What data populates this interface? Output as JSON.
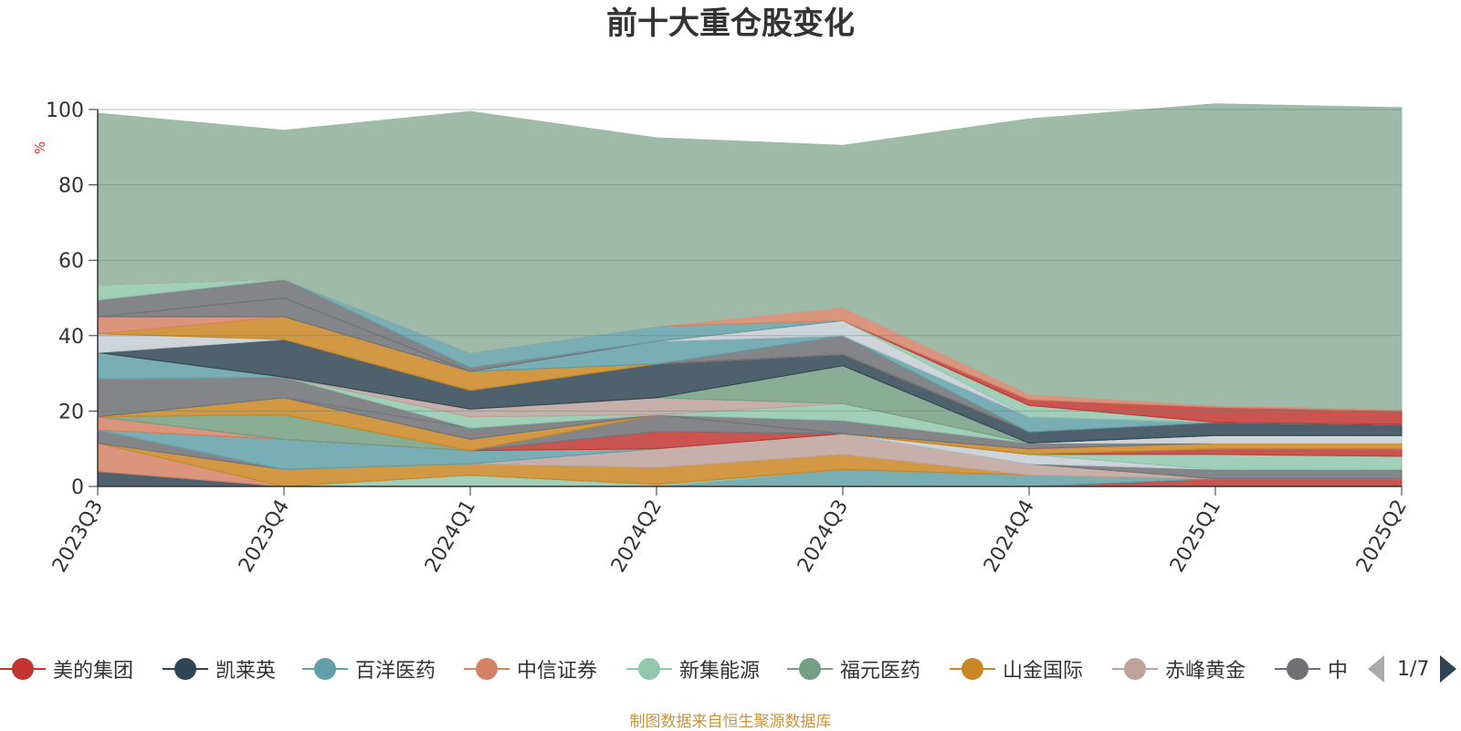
{
  "title": "前十大重仓股变化",
  "source_note": "制图数据来自恒生聚源数据库",
  "legend": {
    "items": [
      {
        "label": "美的集团",
        "color": "#c23531"
      },
      {
        "label": "凯莱英",
        "color": "#2f4554"
      },
      {
        "label": "百洋医药",
        "color": "#61a0a8"
      },
      {
        "label": "中信证券",
        "color": "#d48265"
      },
      {
        "label": "新集能源",
        "color": "#91c7ae"
      },
      {
        "label": "福元医药",
        "color": "#749f83"
      },
      {
        "label": "山金国际",
        "color": "#ca8622"
      },
      {
        "label": "赤峰黄金",
        "color": "#bda29a"
      },
      {
        "label": "中",
        "color": "#6e7074"
      }
    ],
    "page": "1/7"
  },
  "chart_data": {
    "type": "area",
    "stacked": true,
    "title": "前十大重仓股变化",
    "ylabel": "%",
    "ylim": [
      0,
      100
    ],
    "yticks": [
      0,
      20,
      40,
      60,
      80,
      100
    ],
    "grid": true,
    "x": [
      "2023Q3",
      "2023Q4",
      "2024Q1",
      "2024Q2",
      "2024Q3",
      "2024Q4",
      "2025Q1",
      "2025Q2"
    ],
    "series": [
      {
        "color": "#c23531",
        "values": [
          0,
          0,
          0,
          0,
          0,
          0,
          2,
          2
        ]
      },
      {
        "color": "#2f4554",
        "values": [
          4,
          0,
          0,
          0,
          0,
          0,
          0,
          0
        ]
      },
      {
        "color": "#61a0a8",
        "values": [
          0,
          0,
          0,
          0,
          4.5,
          3,
          0,
          0
        ]
      },
      {
        "color": "#d48265",
        "values": [
          7.5,
          0,
          0,
          0,
          0,
          0,
          0,
          0
        ]
      },
      {
        "color": "#91c7ae",
        "values": [
          0,
          0,
          3,
          0.5,
          0,
          0,
          0,
          0
        ]
      },
      {
        "color": "#749f83",
        "values": [
          0,
          0,
          0,
          0,
          0,
          0,
          0,
          0
        ]
      },
      {
        "color": "#ca8622",
        "values": [
          0,
          4.5,
          3,
          4.5,
          4,
          0,
          0,
          0
        ]
      },
      {
        "color": "#bda29a",
        "values": [
          0,
          0,
          0,
          5,
          5.5,
          3,
          0,
          0
        ]
      },
      {
        "color": "#6e7074",
        "values": [
          3.5,
          0,
          0,
          0,
          0,
          0,
          2.5,
          2.5
        ]
      },
      {
        "color": "#546570",
        "values": [
          0,
          0,
          0,
          0,
          0,
          0,
          0,
          0
        ]
      },
      {
        "color": "#c4ccd3",
        "values": [
          0,
          0,
          0,
          0,
          0,
          2.5,
          0,
          0
        ]
      },
      {
        "color": "#61a0a8",
        "values": [
          0,
          8,
          3.5,
          0,
          0,
          0,
          0,
          0
        ]
      },
      {
        "color": "#91c7ae",
        "values": [
          0,
          0,
          0,
          0,
          0,
          0,
          4,
          3.5
        ]
      },
      {
        "color": "#c23531",
        "values": [
          0,
          0,
          0,
          4.5,
          0,
          0,
          1.5,
          2
        ]
      },
      {
        "color": "#d48265",
        "values": [
          3.5,
          0,
          0,
          0,
          0,
          0,
          0,
          0
        ]
      },
      {
        "color": "#6e7074",
        "values": [
          0,
          0,
          0,
          4.5,
          0,
          0,
          0,
          0
        ]
      },
      {
        "color": "#749f83",
        "values": [
          0,
          6.5,
          0,
          0,
          0,
          0,
          0,
          0
        ]
      },
      {
        "color": "#ca8622",
        "values": [
          0,
          4.5,
          3,
          0,
          0,
          1.5,
          1.5,
          1.5
        ]
      },
      {
        "color": "#6e7074",
        "values": [
          0,
          0,
          3,
          0,
          3.5,
          1.5,
          0,
          0
        ]
      },
      {
        "color": "#c4ccd3",
        "values": [
          0,
          0,
          0,
          0,
          0,
          0,
          2,
          2
        ]
      },
      {
        "color": "#6e7074",
        "values": [
          10,
          5.5,
          0,
          0,
          0,
          0,
          0,
          0
        ]
      },
      {
        "color": "#91c7ae",
        "values": [
          0,
          0,
          3,
          0,
          4.5,
          0,
          0,
          0
        ]
      },
      {
        "color": "#61a0a8",
        "values": [
          7,
          0,
          0,
          0,
          0,
          0,
          0,
          0
        ]
      },
      {
        "color": "#bda29a",
        "values": [
          0,
          0,
          2,
          4.5,
          0,
          0,
          0,
          0
        ]
      },
      {
        "color": "#749f83",
        "values": [
          0,
          0,
          0,
          0,
          10,
          0,
          0,
          0
        ]
      },
      {
        "color": "#2f4554",
        "values": [
          0,
          10,
          5,
          9,
          3,
          3,
          3.5,
          3
        ]
      },
      {
        "color": "#c4ccd3",
        "values": [
          5,
          0,
          0,
          0,
          0,
          0,
          0,
          0
        ]
      },
      {
        "color": "#ca8622",
        "values": [
          0,
          6,
          5,
          0,
          0,
          0,
          0,
          0
        ]
      },
      {
        "color": "#d48265",
        "values": [
          4.5,
          0,
          0,
          0,
          0,
          0,
          0,
          0
        ]
      },
      {
        "color": "#6e7074",
        "values": [
          0,
          5,
          0,
          0,
          5,
          0,
          0,
          0
        ]
      },
      {
        "color": "#61a0a8",
        "values": [
          0,
          0,
          0,
          6,
          0,
          4,
          0,
          0
        ]
      },
      {
        "color": "#6e7074",
        "values": [
          4.5,
          5,
          1,
          0,
          0,
          0,
          0,
          0
        ]
      },
      {
        "color": "#c4ccd3",
        "values": [
          0,
          0,
          0,
          0,
          4,
          0,
          0,
          0
        ]
      },
      {
        "color": "#91c7ae",
        "values": [
          4,
          0,
          0,
          0,
          0,
          3,
          0,
          0
        ]
      },
      {
        "color": "#c23531",
        "values": [
          0,
          0,
          0,
          0,
          0,
          1.5,
          4,
          3.5
        ]
      },
      {
        "color": "#61a0a8",
        "values": [
          0,
          0,
          4,
          4,
          0,
          0,
          0,
          0
        ]
      },
      {
        "color": "#d48265",
        "values": [
          0,
          0,
          0,
          0,
          3.5,
          1.5,
          0.5,
          0.5
        ]
      },
      {
        "color": "#9fbaa9",
        "values": [
          45.5,
          39.5,
          64,
          50,
          43,
          73,
          80,
          80
        ]
      }
    ]
  }
}
